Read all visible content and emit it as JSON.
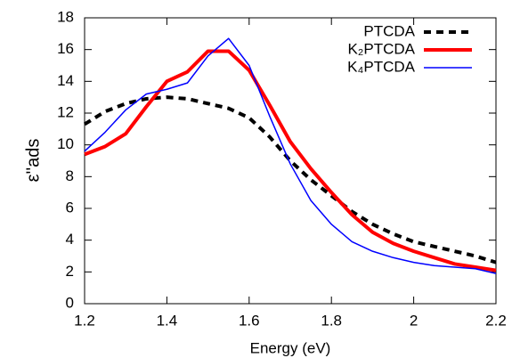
{
  "chart_data": {
    "type": "line",
    "x_label": "Energy (eV)",
    "y_label": "ε''ads",
    "x": [
      1.2,
      1.25,
      1.3,
      1.35,
      1.4,
      1.45,
      1.5,
      1.55,
      1.6,
      1.65,
      1.7,
      1.75,
      1.8,
      1.85,
      1.9,
      1.95,
      2.0,
      2.05,
      2.1,
      2.15,
      2.2
    ],
    "series": [
      {
        "name": "PTCDA",
        "color": "#000000",
        "dashed": true,
        "width": 4,
        "values": [
          11.3,
          12.1,
          12.6,
          12.9,
          13.0,
          12.9,
          12.6,
          12.3,
          11.7,
          10.5,
          9.0,
          7.8,
          6.8,
          5.8,
          5.0,
          4.4,
          3.9,
          3.6,
          3.3,
          3.0,
          2.6
        ]
      },
      {
        "name": "K₂PTCDA",
        "color": "#ff0000",
        "dashed": false,
        "width": 4,
        "values": [
          9.4,
          9.9,
          10.7,
          12.4,
          14.0,
          14.6,
          15.9,
          15.9,
          14.7,
          12.5,
          10.2,
          8.5,
          7.0,
          5.6,
          4.5,
          3.8,
          3.3,
          2.9,
          2.5,
          2.3,
          2.1
        ]
      },
      {
        "name": "K₄PTCDA",
        "color": "#0000ff",
        "dashed": false,
        "width": 1.5,
        "values": [
          9.6,
          10.8,
          12.2,
          13.2,
          13.5,
          13.9,
          15.6,
          16.7,
          15.0,
          11.8,
          8.8,
          6.5,
          5.0,
          3.9,
          3.3,
          2.9,
          2.6,
          2.4,
          2.3,
          2.2,
          1.9
        ]
      }
    ],
    "xlim": [
      1.2,
      2.2
    ],
    "xticks": [
      1.2,
      1.4,
      1.6,
      1.8,
      2,
      2.2
    ],
    "ylim": [
      0,
      18
    ],
    "yticks": [
      0,
      2,
      4,
      6,
      8,
      10,
      12,
      14,
      16,
      18
    ],
    "legend": "top-right"
  }
}
